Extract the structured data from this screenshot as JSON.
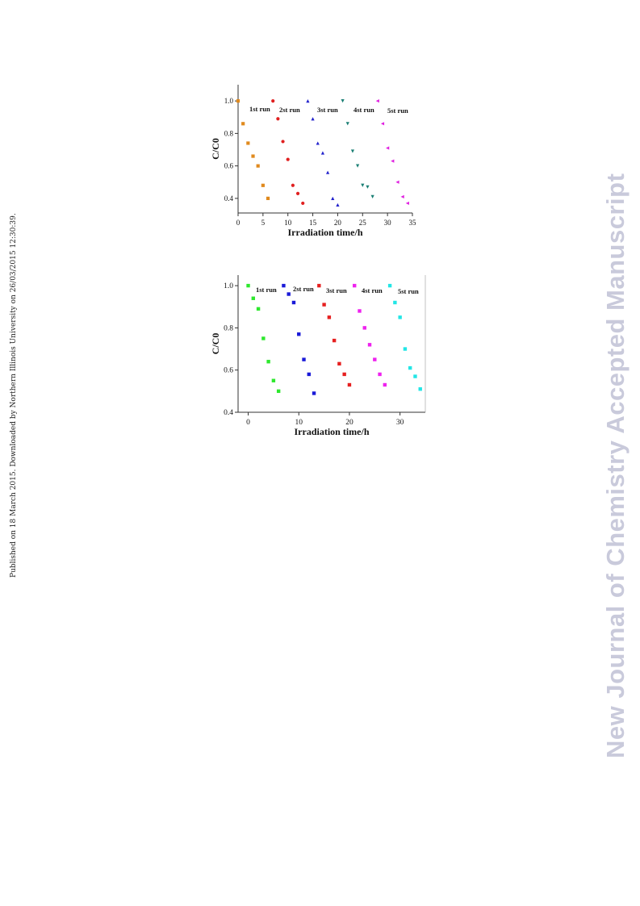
{
  "side_text": {
    "left": "Published on 18 March 2015. Downloaded by Northern Illinois University on 26/03/2015 12:30:39.",
    "right": "New Journal of Chemistry Accepted Manuscript"
  },
  "chart_data": [
    {
      "type": "scatter",
      "xlabel": "Irradiation time/h",
      "ylabel": "C/C0",
      "xlim": [
        0,
        35
      ],
      "ylim": [
        0.31,
        1.1
      ],
      "xticks": [
        "0",
        "5",
        "10",
        "15",
        "20",
        "25",
        "30",
        "35"
      ],
      "yticks": [
        "0.4",
        "0.6",
        "0.8",
        "1.0"
      ],
      "grid": false,
      "series": [
        {
          "name": "1st run",
          "color": "#e08a1e",
          "marker": "square",
          "x": [
            0,
            1,
            2,
            3,
            4,
            5,
            6
          ],
          "y": [
            1.0,
            0.86,
            0.74,
            0.66,
            0.6,
            0.48,
            0.4
          ]
        },
        {
          "name": "2st run",
          "color": "#e02020",
          "marker": "circle",
          "x": [
            7,
            8,
            9,
            10,
            11,
            12,
            13
          ],
          "y": [
            1.0,
            0.89,
            0.75,
            0.64,
            0.48,
            0.43,
            0.37
          ]
        },
        {
          "name": "3st run",
          "color": "#2222cc",
          "marker": "triangle-up",
          "x": [
            14,
            15,
            16,
            17,
            18,
            19,
            20
          ],
          "y": [
            1.0,
            0.89,
            0.74,
            0.68,
            0.56,
            0.4,
            0.36
          ]
        },
        {
          "name": "4st run",
          "color": "#1a7f74",
          "marker": "triangle-down",
          "x": [
            21,
            22,
            23,
            24,
            25,
            26,
            27
          ],
          "y": [
            1.0,
            0.86,
            0.69,
            0.6,
            0.48,
            0.47,
            0.41
          ]
        },
        {
          "name": "5st run",
          "color": "#e020e0",
          "marker": "triangle-left",
          "x": [
            28,
            29,
            30,
            31,
            32,
            33,
            34
          ],
          "y": [
            1.0,
            0.86,
            0.71,
            0.63,
            0.5,
            0.41,
            0.37
          ]
        }
      ]
    },
    {
      "type": "scatter",
      "xlabel": "Irradiation time/h",
      "ylabel": "C/C0",
      "xlim": [
        -2,
        35
      ],
      "ylim": [
        0.4,
        1.05
      ],
      "xticks": [
        "0",
        "10",
        "20",
        "30"
      ],
      "yticks": [
        "0.4",
        "0.6",
        "0.8",
        "1.0"
      ],
      "grid": false,
      "series": [
        {
          "name": "1st run",
          "color": "#2ee82e",
          "marker": "square",
          "x": [
            0,
            1,
            2,
            3,
            4,
            5,
            6
          ],
          "y": [
            1.0,
            0.94,
            0.89,
            0.75,
            0.64,
            0.55,
            0.5
          ]
        },
        {
          "name": "2st run",
          "color": "#1a1ad8",
          "marker": "square",
          "x": [
            7,
            8,
            9,
            10,
            11,
            12,
            13
          ],
          "y": [
            1.0,
            0.96,
            0.92,
            0.77,
            0.65,
            0.58,
            0.49
          ]
        },
        {
          "name": "3st run",
          "color": "#e62020",
          "marker": "square",
          "x": [
            14,
            15,
            16,
            17,
            18,
            19,
            20
          ],
          "y": [
            1.0,
            0.91,
            0.85,
            0.74,
            0.63,
            0.58,
            0.53
          ]
        },
        {
          "name": "4st run",
          "color": "#ee22ee",
          "marker": "square",
          "x": [
            21,
            22,
            23,
            24,
            25,
            26,
            27
          ],
          "y": [
            1.0,
            0.88,
            0.8,
            0.72,
            0.65,
            0.58,
            0.53
          ]
        },
        {
          "name": "5st run",
          "color": "#22e6e6",
          "marker": "square",
          "x": [
            28,
            29,
            30,
            31,
            32,
            33,
            34
          ],
          "y": [
            1.0,
            0.92,
            0.85,
            0.7,
            0.61,
            0.57,
            0.51
          ]
        }
      ]
    }
  ]
}
